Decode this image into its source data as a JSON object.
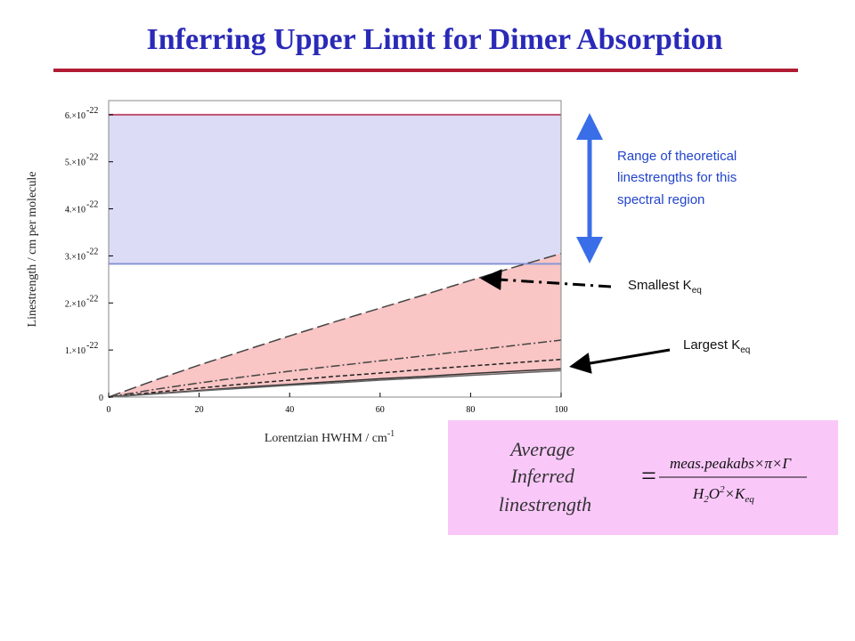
{
  "slide": {
    "title": "Inferring Upper Limit for Dimer Absorption",
    "range_note": [
      "Range of theoretical",
      "linestrengths for this",
      "spectral region"
    ],
    "smallest": {
      "text": "Smallest K",
      "sub": "eq"
    },
    "largest": {
      "text": "Largest K",
      "sub": "eq"
    },
    "formula": {
      "lhs": [
        "Average",
        "Inferred",
        "linestrength"
      ],
      "equals": "=",
      "numerator": "meas.peakabs×π×Γ",
      "denominator": [
        {
          "text": "H"
        },
        {
          "text": "2",
          "style": "sub"
        },
        {
          "text": "O"
        },
        {
          "text": "2",
          "style": "sup"
        },
        {
          "text": "×K"
        },
        {
          "text": "eq",
          "style": "sub"
        }
      ]
    }
  },
  "chart_data": {
    "type": "line",
    "x_label": "Lorentzian HWHM / cm",
    "x_label_sup": "-1",
    "y_label": "Linestrength / cm per molecule",
    "x": [
      0,
      10,
      20,
      30,
      40,
      50,
      60,
      70,
      80,
      90,
      100
    ],
    "series": [
      {
        "color": "#444444",
        "dash": "14,5",
        "values": [
          0,
          3.5e-23,
          6.8e-23,
          9.9e-23,
          1.3e-22,
          1.6e-22,
          1.89e-22,
          2.18e-22,
          2.48e-22,
          2.77e-22,
          3.05e-22
        ]
      },
      {
        "color": "#444444",
        "dash": "10,3,2,3",
        "values": [
          0,
          1.6e-23,
          3e-23,
          4.3e-23,
          5.5e-23,
          6.6e-23,
          7.7e-23,
          8.8e-23,
          9.9e-23,
          1.1e-22,
          1.21e-22
        ]
      },
      {
        "color": "#222222",
        "dash": "5,3",
        "values": [
          0,
          1e-23,
          1.9e-23,
          2.8e-23,
          3.6e-23,
          4.4e-23,
          5.1e-23,
          5.9e-23,
          6.6e-23,
          7.3e-23,
          8e-23
        ]
      },
      {
        "color": "#333333",
        "dash": "",
        "values": [
          0,
          7e-24,
          1.4e-23,
          2.1e-23,
          2.7e-23,
          3.3e-23,
          3.9e-23,
          4.4e-23,
          5e-23,
          5.5e-23,
          6e-23
        ]
      },
      {
        "color": "#666666",
        "dash": "",
        "values": [
          0,
          6.5e-24,
          1.3e-23,
          1.9e-23,
          2.5e-23,
          3e-23,
          3.6e-23,
          4.1e-23,
          4.6e-23,
          5.1e-23,
          5.6e-23
        ]
      }
    ],
    "fill_color": "#f9c5c5",
    "hlines": [
      {
        "value": 6e-22,
        "color": "#c05070"
      },
      {
        "value": 2.83e-22,
        "color": "#8a96d8"
      }
    ],
    "band_color": "#dcdcf6",
    "xlim": [
      0,
      100
    ],
    "xticks": [
      0,
      20,
      40,
      60,
      80,
      100
    ],
    "ylim": [
      0,
      6.3e-22
    ],
    "yticks": [
      0,
      {
        "value": 1e-22,
        "label": "1.×10",
        "exponent": "-22"
      },
      {
        "value": 2e-22,
        "label": "2.×10",
        "exponent": "-22"
      },
      {
        "value": 3e-22,
        "label": "3.×10",
        "exponent": "-22"
      },
      {
        "value": 4e-22,
        "label": "4.×10",
        "exponent": "-22"
      },
      {
        "value": 5e-22,
        "label": "5.×10",
        "exponent": "-22"
      },
      {
        "value": 6e-22,
        "label": "6.×10",
        "exponent": "-22"
      }
    ]
  }
}
